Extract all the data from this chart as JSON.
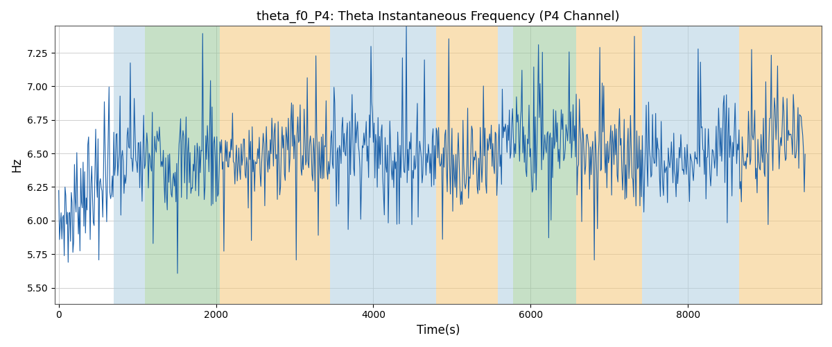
{
  "title": "theta_f0_P4: Theta Instantaneous Frequency (P4 Channel)",
  "xlabel": "Time(s)",
  "ylabel": "Hz",
  "ylim": [
    5.38,
    7.45
  ],
  "xlim": [
    -50,
    9700
  ],
  "line_color": "#1a5fa8",
  "line_width": 0.8,
  "background_color": "#ffffff",
  "grid_color": "#c8c8c8",
  "bands": [
    {
      "xmin": 700,
      "xmax": 1100,
      "color": "#b0cfe0",
      "alpha": 0.55
    },
    {
      "xmin": 1100,
      "xmax": 2050,
      "color": "#98c898",
      "alpha": 0.55
    },
    {
      "xmin": 2050,
      "xmax": 3450,
      "color": "#f5c878",
      "alpha": 0.55
    },
    {
      "xmin": 3450,
      "xmax": 4800,
      "color": "#b0cfe0",
      "alpha": 0.55
    },
    {
      "xmin": 4800,
      "xmax": 5580,
      "color": "#f5c878",
      "alpha": 0.55
    },
    {
      "xmin": 5580,
      "xmax": 5780,
      "color": "#b0cfe0",
      "alpha": 0.55
    },
    {
      "xmin": 5780,
      "xmax": 6580,
      "color": "#98c898",
      "alpha": 0.55
    },
    {
      "xmin": 6580,
      "xmax": 7420,
      "color": "#f5c878",
      "alpha": 0.55
    },
    {
      "xmin": 7420,
      "xmax": 8650,
      "color": "#b0cfe0",
      "alpha": 0.55
    },
    {
      "xmin": 8650,
      "xmax": 9700,
      "color": "#f5c878",
      "alpha": 0.55
    }
  ],
  "yticks": [
    5.5,
    5.75,
    6.0,
    6.25,
    6.5,
    6.75,
    7.0,
    7.25
  ],
  "xticks": [
    0,
    2000,
    4000,
    6000,
    8000
  ],
  "seed": 7,
  "dt": 10,
  "total_seconds": 9500,
  "base_freq": 6.52,
  "noise_std": 0.18,
  "figsize": [
    12,
    5
  ],
  "dpi": 100
}
